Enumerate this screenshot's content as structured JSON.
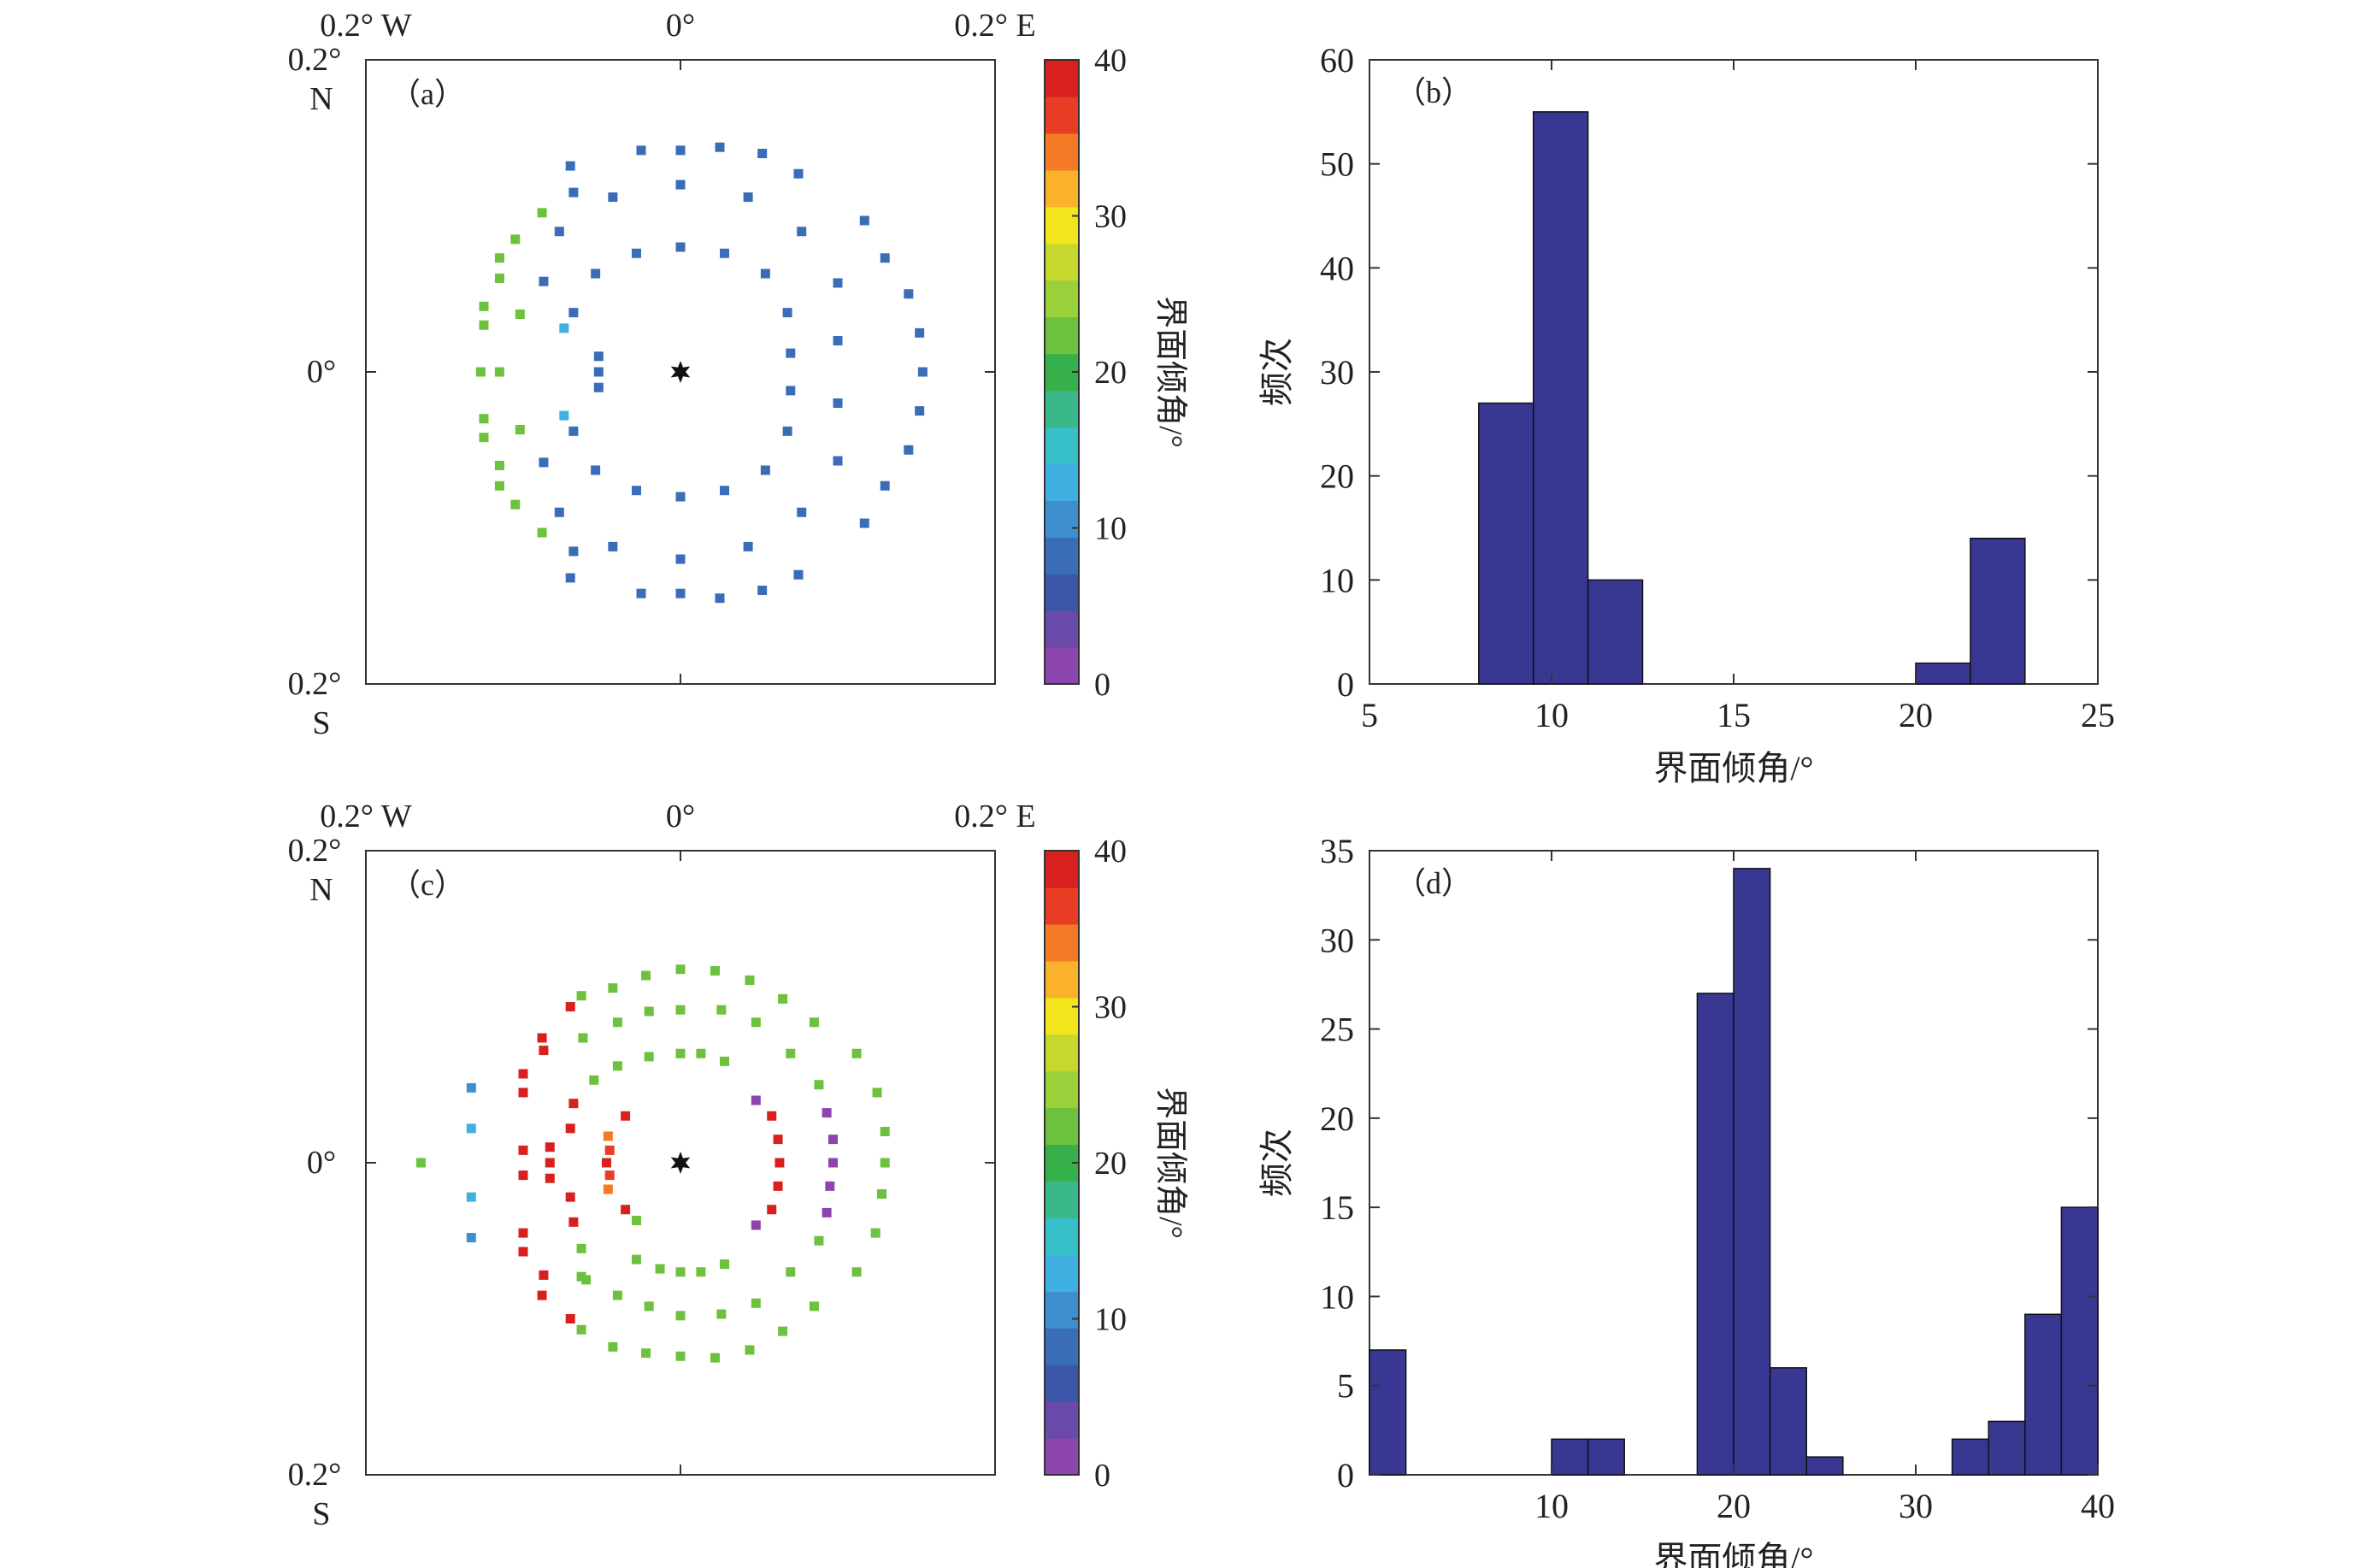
{
  "colors": {
    "bar_fill": "#383893",
    "bar_stroke": "#111111",
    "axis": "#333333",
    "star": "#111111"
  },
  "colormap": [
    "#8e44ad",
    "#6a4aa8",
    "#3b55a8",
    "#3a6db8",
    "#3d8fd0",
    "#40b0e0",
    "#38c0c8",
    "#3ab888",
    "#36b04a",
    "#6cc23c",
    "#9ad03a",
    "#c7d82c",
    "#f2e51c",
    "#f9b22a",
    "#f47a26",
    "#e83c24",
    "#d8201e"
  ],
  "chart_data": [
    {
      "panel": "a",
      "type": "scatter",
      "label": "（a）",
      "top_labels": [
        "0.2° W",
        "0°",
        "0.2° E"
      ],
      "left_labels": {
        "top": "0.2°",
        "top2": "N",
        "mid": "0°",
        "bottom": "0.2°",
        "bottom2": "S"
      },
      "xlim": [
        -0.2,
        0.2
      ],
      "ylim": [
        -0.2,
        0.2
      ],
      "colorbar": {
        "label": "界面倾角/°",
        "ticks": [
          "0",
          "10",
          "20",
          "30",
          "40"
        ],
        "range": [
          0,
          40
        ]
      },
      "star": {
        "x": 0,
        "y": 0
      },
      "points": [
        [
          -0.052,
          0.01,
          9
        ],
        [
          -0.052,
          0.0,
          9
        ],
        [
          -0.052,
          -0.01,
          9
        ],
        [
          0.0,
          0.08,
          9
        ],
        [
          0.028,
          0.076,
          9
        ],
        [
          0.054,
          0.063,
          9
        ],
        [
          0.068,
          0.038,
          9
        ],
        [
          0.07,
          0.012,
          9
        ],
        [
          0.07,
          -0.012,
          9
        ],
        [
          0.068,
          -0.038,
          9
        ],
        [
          0.054,
          -0.063,
          9
        ],
        [
          0.028,
          -0.076,
          9
        ],
        [
          0.0,
          -0.08,
          9
        ],
        [
          -0.028,
          -0.076,
          9
        ],
        [
          -0.054,
          -0.063,
          9
        ],
        [
          -0.068,
          -0.038,
          9
        ],
        [
          -0.074,
          -0.028,
          12
        ],
        [
          -0.074,
          0.028,
          12
        ],
        [
          -0.068,
          0.038,
          9
        ],
        [
          -0.054,
          0.063,
          9
        ],
        [
          -0.028,
          0.076,
          9
        ],
        [
          0.0,
          0.12,
          9
        ],
        [
          0.043,
          0.112,
          9
        ],
        [
          0.077,
          0.09,
          9
        ],
        [
          0.1,
          0.057,
          9
        ],
        [
          0.1,
          0.02,
          9
        ],
        [
          0.1,
          -0.02,
          9
        ],
        [
          0.1,
          -0.057,
          9
        ],
        [
          0.077,
          -0.09,
          9
        ],
        [
          0.043,
          -0.112,
          9
        ],
        [
          0.0,
          -0.12,
          9
        ],
        [
          -0.043,
          -0.112,
          9
        ],
        [
          -0.077,
          -0.09,
          9
        ],
        [
          -0.087,
          -0.058,
          9
        ],
        [
          -0.087,
          0.058,
          9
        ],
        [
          -0.077,
          0.09,
          9
        ],
        [
          -0.043,
          0.112,
          9
        ],
        [
          0.0,
          0.142,
          9
        ],
        [
          0.025,
          0.144,
          9
        ],
        [
          0.052,
          0.14,
          9
        ],
        [
          0.075,
          0.127,
          9
        ],
        [
          0.117,
          0.097,
          9
        ],
        [
          0.13,
          0.073,
          9
        ],
        [
          0.145,
          0.05,
          9
        ],
        [
          0.152,
          0.025,
          9
        ],
        [
          0.154,
          0.0,
          9
        ],
        [
          0.152,
          -0.025,
          9
        ],
        [
          0.145,
          -0.05,
          9
        ],
        [
          0.13,
          -0.073,
          9
        ],
        [
          0.117,
          -0.097,
          9
        ],
        [
          0.075,
          -0.13,
          9
        ],
        [
          0.052,
          -0.14,
          9
        ],
        [
          0.025,
          -0.145,
          9
        ],
        [
          0.0,
          -0.142,
          9
        ],
        [
          -0.025,
          -0.142,
          9
        ],
        [
          -0.07,
          -0.132,
          9
        ],
        [
          -0.07,
          0.132,
          9
        ],
        [
          -0.025,
          0.142,
          9
        ],
        [
          -0.068,
          0.115,
          9
        ],
        [
          -0.068,
          -0.115,
          9
        ],
        [
          -0.102,
          -0.037,
          22
        ],
        [
          -0.102,
          0.037,
          22
        ],
        [
          -0.115,
          0.073,
          22
        ],
        [
          -0.115,
          -0.073,
          22
        ],
        [
          -0.125,
          0.03,
          22
        ],
        [
          -0.125,
          -0.03,
          22
        ],
        [
          -0.127,
          0.0,
          22
        ],
        [
          -0.115,
          0.0,
          22
        ],
        [
          -0.105,
          -0.085,
          22
        ],
        [
          -0.105,
          0.085,
          22
        ],
        [
          -0.088,
          -0.103,
          22
        ],
        [
          -0.088,
          0.102,
          22
        ],
        [
          -0.115,
          0.06,
          22
        ],
        [
          -0.115,
          -0.06,
          22
        ],
        [
          -0.125,
          0.042,
          22
        ],
        [
          -0.125,
          -0.042,
          22
        ]
      ]
    },
    {
      "panel": "b",
      "type": "bar",
      "label": "（b）",
      "xlabel": "界面倾角/°",
      "ylabel": "频次",
      "xlim": [
        5,
        25
      ],
      "ylim": [
        0,
        60
      ],
      "xticks": [
        5,
        10,
        15,
        20,
        25
      ],
      "yticks": [
        0,
        10,
        20,
        30,
        40,
        50,
        60
      ],
      "bins": [
        [
          8.0,
          9.5,
          27
        ],
        [
          9.5,
          11.0,
          55
        ],
        [
          11.0,
          12.5,
          10
        ],
        [
          20.0,
          21.5,
          2
        ],
        [
          21.5,
          23.0,
          14
        ]
      ]
    },
    {
      "panel": "c",
      "type": "scatter",
      "label": "（c）",
      "top_labels": [
        "0.2° W",
        "0°",
        "0.2° E"
      ],
      "left_labels": {
        "top": "0.2°",
        "top2": "N",
        "mid": "0°",
        "bottom": "0.2°",
        "bottom2": "S"
      },
      "xlim": [
        -0.2,
        0.2
      ],
      "ylim": [
        -0.2,
        0.2
      ],
      "colorbar": {
        "label": "界面倾角/°",
        "ticks": [
          "0",
          "10",
          "20",
          "30",
          "40"
        ],
        "range": [
          0,
          40
        ]
      },
      "star": {
        "x": 0,
        "y": 0
      },
      "points": [
        [
          -0.035,
          0.03,
          38
        ],
        [
          -0.046,
          0.017,
          34
        ],
        [
          -0.047,
          0.0,
          38
        ],
        [
          -0.046,
          -0.017,
          34
        ],
        [
          -0.035,
          -0.03,
          38
        ],
        [
          -0.045,
          0.008,
          36
        ],
        [
          -0.045,
          -0.008,
          36
        ],
        [
          -0.028,
          -0.037,
          22
        ],
        [
          0.0,
          0.07,
          22
        ],
        [
          0.013,
          0.07,
          22
        ],
        [
          0.028,
          0.065,
          22
        ],
        [
          0.048,
          0.04,
          2
        ],
        [
          0.058,
          0.03,
          38
        ],
        [
          0.062,
          0.015,
          38
        ],
        [
          0.063,
          0.0,
          38
        ],
        [
          0.062,
          -0.015,
          38
        ],
        [
          0.058,
          -0.03,
          38
        ],
        [
          0.048,
          -0.04,
          2
        ],
        [
          0.028,
          -0.065,
          22
        ],
        [
          0.013,
          -0.07,
          22
        ],
        [
          0.0,
          -0.07,
          22
        ],
        [
          -0.013,
          -0.068,
          22
        ],
        [
          -0.028,
          -0.062,
          22
        ],
        [
          -0.055,
          0.053,
          22
        ],
        [
          -0.04,
          0.062,
          22
        ],
        [
          -0.02,
          0.068,
          22
        ],
        [
          -0.07,
          0.022,
          38
        ],
        [
          -0.07,
          -0.022,
          38
        ],
        [
          -0.068,
          0.038,
          38
        ],
        [
          -0.068,
          -0.038,
          38
        ],
        [
          -0.063,
          -0.055,
          22
        ],
        [
          -0.063,
          -0.073,
          22
        ],
        [
          -0.062,
          0.08,
          22
        ],
        [
          -0.083,
          0.0,
          38
        ],
        [
          -0.083,
          0.01,
          38
        ],
        [
          -0.083,
          -0.01,
          38
        ],
        [
          0.0,
          0.098,
          22
        ],
        [
          0.026,
          0.098,
          22
        ],
        [
          0.048,
          0.09,
          22
        ],
        [
          0.07,
          0.07,
          22
        ],
        [
          0.088,
          0.05,
          22
        ],
        [
          0.093,
          0.032,
          2
        ],
        [
          0.097,
          0.015,
          2
        ],
        [
          0.097,
          0.0,
          2
        ],
        [
          0.095,
          -0.015,
          2
        ],
        [
          0.093,
          -0.032,
          2
        ],
        [
          0.088,
          -0.05,
          22
        ],
        [
          0.07,
          -0.07,
          22
        ],
        [
          0.048,
          -0.09,
          22
        ],
        [
          0.026,
          -0.097,
          22
        ],
        [
          0.0,
          -0.098,
          22
        ],
        [
          -0.02,
          -0.092,
          22
        ],
        [
          -0.04,
          -0.085,
          22
        ],
        [
          -0.06,
          -0.075,
          22
        ],
        [
          -0.07,
          0.1,
          38
        ],
        [
          -0.07,
          -0.1,
          38
        ],
        [
          -0.04,
          0.09,
          22
        ],
        [
          -0.02,
          0.097,
          22
        ],
        [
          0.0,
          0.124,
          22
        ],
        [
          0.022,
          0.123,
          22
        ],
        [
          0.044,
          0.117,
          22
        ],
        [
          0.065,
          0.105,
          22
        ],
        [
          0.085,
          0.09,
          22
        ],
        [
          0.112,
          0.07,
          22
        ],
        [
          0.125,
          0.045,
          22
        ],
        [
          0.13,
          0.02,
          22
        ],
        [
          0.13,
          0.0,
          22
        ],
        [
          0.128,
          -0.02,
          22
        ],
        [
          0.124,
          -0.045,
          22
        ],
        [
          0.112,
          -0.07,
          22
        ],
        [
          0.085,
          -0.092,
          22
        ],
        [
          0.065,
          -0.108,
          22
        ],
        [
          0.044,
          -0.12,
          22
        ],
        [
          0.022,
          -0.125,
          22
        ],
        [
          0.0,
          -0.124,
          22
        ],
        [
          -0.022,
          -0.122,
          22
        ],
        [
          -0.063,
          -0.107,
          22
        ],
        [
          -0.063,
          0.107,
          22
        ],
        [
          -0.022,
          0.12,
          22
        ],
        [
          -0.043,
          0.112,
          22
        ],
        [
          -0.043,
          -0.118,
          22
        ],
        [
          -0.1,
          0.057,
          38
        ],
        [
          -0.1,
          -0.057,
          38
        ],
        [
          -0.087,
          0.072,
          38
        ],
        [
          -0.087,
          -0.072,
          38
        ],
        [
          -0.088,
          0.08,
          38
        ],
        [
          -0.088,
          -0.085,
          38
        ],
        [
          -0.1,
          0.045,
          38
        ],
        [
          -0.1,
          -0.045,
          38
        ],
        [
          -0.133,
          0.048,
          11
        ],
        [
          -0.133,
          0.022,
          14
        ],
        [
          -0.133,
          -0.022,
          14
        ],
        [
          -0.133,
          -0.048,
          11
        ],
        [
          -0.165,
          0.0,
          22
        ],
        [
          -0.1,
          0.008,
          38
        ],
        [
          -0.1,
          -0.008,
          38
        ]
      ]
    },
    {
      "panel": "d",
      "type": "bar",
      "label": "（d）",
      "xlabel": "界面倾角/°",
      "ylabel": "频次",
      "xlim": [
        0,
        40
      ],
      "ylim": [
        0,
        35
      ],
      "xticks": [
        10,
        20,
        30,
        40
      ],
      "yticks": [
        0,
        5,
        10,
        15,
        20,
        25,
        30,
        35
      ],
      "bins": [
        [
          0,
          2,
          7
        ],
        [
          10,
          12,
          2
        ],
        [
          12,
          14,
          2
        ],
        [
          18,
          20,
          27
        ],
        [
          20,
          22,
          34
        ],
        [
          22,
          24,
          6
        ],
        [
          24,
          26,
          1
        ],
        [
          32,
          34,
          2
        ],
        [
          34,
          36,
          3
        ],
        [
          36,
          38,
          9
        ],
        [
          38,
          40,
          15
        ]
      ]
    }
  ]
}
